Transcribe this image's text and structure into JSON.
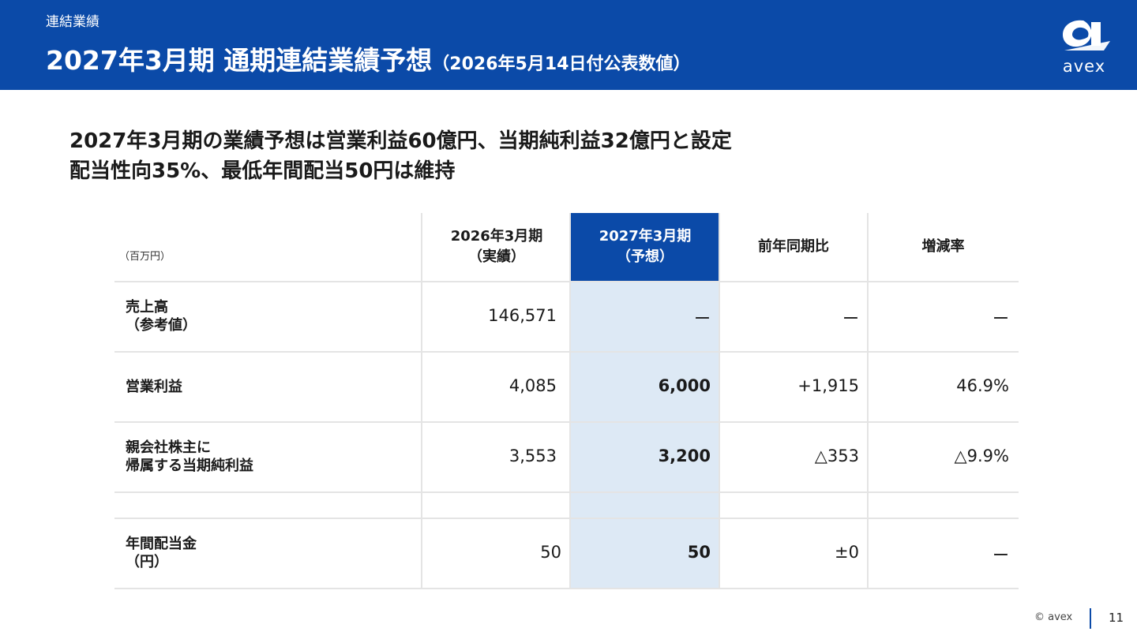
{
  "header": {
    "section_label": "連結業績",
    "title": "2027年3月期 通期連結業績予想",
    "subtitle": "（2026年5月14日付公表数値）",
    "logo_text": "avex",
    "background_color": "#0b4aa8"
  },
  "lead": {
    "line1": "2027年3月期の業績予想は営業利益60億円、当期純利益32億円と設定",
    "line2": "配当性向35%、最低年間配当50円は維持"
  },
  "table": {
    "unit": "（百万円）",
    "columns": [
      {
        "line1": "2026年3月期",
        "line2": "（実績）"
      },
      {
        "line1": "2027年3月期",
        "line2": "（予想）"
      },
      {
        "line1": "前年同期比",
        "line2": ""
      },
      {
        "line1": "増減率",
        "line2": ""
      }
    ],
    "rows": [
      {
        "label1": "売上高",
        "label2": "（参考値）",
        "actual": "146,571",
        "forecast": "ー",
        "yoy": "ー",
        "rate": "ー"
      },
      {
        "label1": "営業利益",
        "label2": "",
        "actual": "4,085",
        "forecast": "6,000",
        "yoy": "+1,915",
        "rate": "46.9%"
      },
      {
        "label1": "親会社株主に",
        "label2": "帰属する当期純利益",
        "actual": "3,553",
        "forecast": "3,200",
        "yoy": "△353",
        "rate": "△9.9%"
      },
      {
        "label1": "年間配当金",
        "label2": "（円）",
        "actual": "50",
        "forecast": "50",
        "yoy": "±0",
        "rate": "ー"
      }
    ],
    "highlight_color": "#dde9f5"
  },
  "footer": {
    "copyright": "© avex",
    "page_number": "11"
  }
}
